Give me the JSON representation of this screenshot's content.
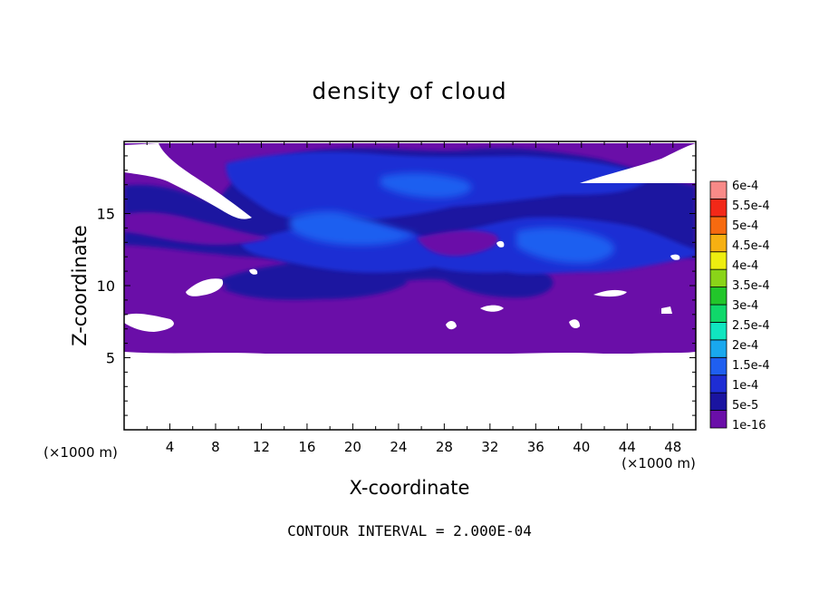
{
  "chart_data": {
    "type": "heatmap",
    "title": "density of cloud",
    "xlabel": "X-coordinate",
    "ylabel": "Z-coordinate",
    "x_unit": "(×1000 m)",
    "y_unit": "(×1000 m)",
    "xlim": [
      0,
      50
    ],
    "ylim": [
      0,
      20
    ],
    "x_ticks": [
      4,
      8,
      12,
      16,
      20,
      24,
      28,
      32,
      36,
      40,
      44,
      48
    ],
    "y_ticks": [
      5,
      10,
      15
    ],
    "contour_interval_text": "CONTOUR INTERVAL = 2.000E-04",
    "colorbar": {
      "levels": [
        "1e-16",
        "5e-5",
        "1e-4",
        "1.5e-4",
        "2e-4",
        "2.5e-4",
        "3e-4",
        "3.5e-4",
        "4e-4",
        "4.5e-4",
        "5e-4",
        "5.5e-4",
        "6e-4"
      ],
      "colors": [
        "#6a0ea8",
        "#1a14a0",
        "#1e2dd4",
        "#1f5ff0",
        "#19a8ee",
        "#10e6c0",
        "#10d86a",
        "#22c62a",
        "#8ad418",
        "#eeee10",
        "#f6b012",
        "#f66a10",
        "#f22818",
        "#f88a88"
      ]
    },
    "field_description_levels": {
      "cloud_base_z": 5.2,
      "cloud_top_z": 19.5
    }
  }
}
